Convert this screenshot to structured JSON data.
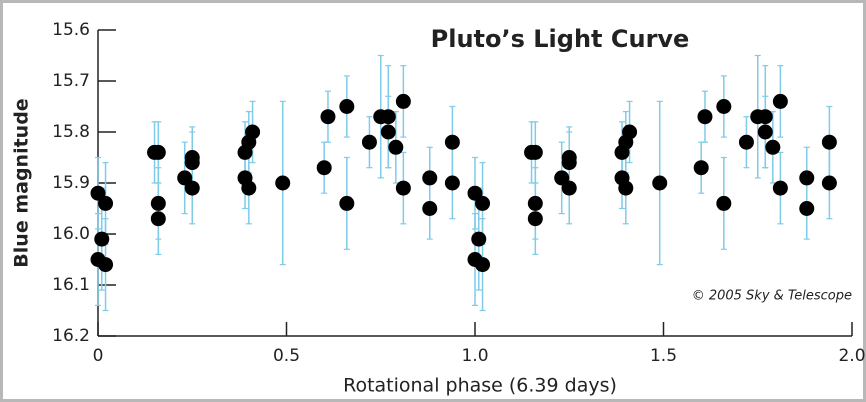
{
  "chart_data": {
    "type": "scatter",
    "title": "Pluto’s Light Curve",
    "x_label": "Rotational phase (6.39 days)",
    "y_label": "Blue magnitude",
    "annotation": "© 2005 Sky & Telescope",
    "xlim": [
      0,
      2.0
    ],
    "xticks": [
      0,
      0.5,
      {
        "value": 1,
        "label": "1.0"
      },
      1.5,
      {
        "value": 2,
        "label": "2.0"
      }
    ],
    "ylim": [
      15.6,
      16.2
    ],
    "y_inverted": true,
    "yticks": [
      15.6,
      15.7,
      15.8,
      15.9,
      {
        "value": 16,
        "label": "16.0"
      },
      16.1,
      16.2
    ],
    "color": "#000000",
    "error_color": "#7fcbe8",
    "x": [
      0.0,
      0.02,
      0.01,
      0.0,
      0.02,
      0.15,
      0.16,
      0.16,
      0.16,
      0.23,
      0.25,
      0.25,
      0.25,
      0.39,
      0.4,
      0.41,
      0.39,
      0.4,
      0.49,
      0.6,
      0.61,
      0.66,
      0.66,
      0.72,
      0.75,
      0.77,
      0.77,
      0.79,
      0.81,
      0.81,
      0.88,
      0.88,
      0.94,
      0.94,
      1.0,
      1.02,
      1.01,
      1.0,
      1.02,
      1.15,
      1.16,
      1.16,
      1.16,
      1.23,
      1.25,
      1.25,
      1.25,
      1.39,
      1.4,
      1.41,
      1.39,
      1.4,
      1.49,
      1.6,
      1.61,
      1.66,
      1.66,
      1.72,
      1.75,
      1.77,
      1.77,
      1.79,
      1.81,
      1.81,
      1.88,
      1.88,
      1.94,
      1.94
    ],
    "values": [
      15.92,
      15.94,
      16.01,
      16.05,
      16.06,
      15.84,
      15.84,
      15.94,
      15.97,
      15.89,
      15.85,
      15.86,
      15.91,
      15.84,
      15.82,
      15.8,
      15.89,
      15.91,
      15.9,
      15.87,
      15.77,
      15.75,
      15.94,
      15.82,
      15.77,
      15.77,
      15.8,
      15.83,
      15.74,
      15.91,
      15.89,
      15.95,
      15.82,
      15.9,
      15.92,
      15.94,
      16.01,
      16.05,
      16.06,
      15.84,
      15.84,
      15.94,
      15.97,
      15.89,
      15.85,
      15.86,
      15.91,
      15.84,
      15.82,
      15.8,
      15.89,
      15.91,
      15.9,
      15.87,
      15.77,
      15.75,
      15.94,
      15.82,
      15.77,
      15.77,
      15.8,
      15.83,
      15.74,
      15.91,
      15.89,
      15.95,
      15.82,
      15.9
    ],
    "errors": [
      0.07,
      0.08,
      0.1,
      0.09,
      0.09,
      0.06,
      0.06,
      0.07,
      0.07,
      0.07,
      0.06,
      0.06,
      0.07,
      0.06,
      0.06,
      0.06,
      0.06,
      0.07,
      0.16,
      0.05,
      0.05,
      0.06,
      0.09,
      0.05,
      0.12,
      0.1,
      0.07,
      0.07,
      0.07,
      0.07,
      0.06,
      0.06,
      0.07,
      0.07,
      0.07,
      0.08,
      0.1,
      0.09,
      0.09,
      0.06,
      0.06,
      0.07,
      0.07,
      0.07,
      0.06,
      0.06,
      0.07,
      0.06,
      0.06,
      0.06,
      0.06,
      0.07,
      0.16,
      0.05,
      0.05,
      0.06,
      0.09,
      0.05,
      0.12,
      0.1,
      0.07,
      0.07,
      0.07,
      0.07,
      0.06,
      0.06,
      0.07,
      0.07
    ]
  }
}
